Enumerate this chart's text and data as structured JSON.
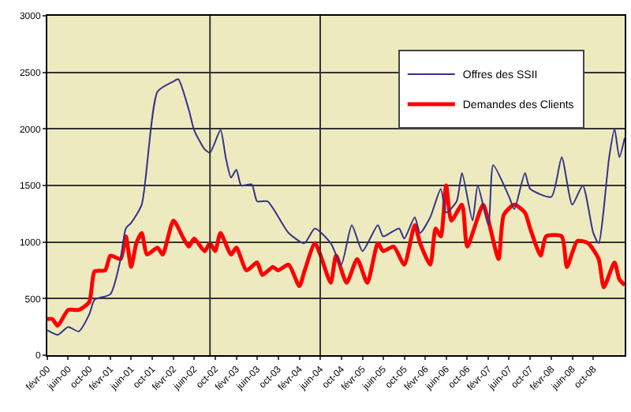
{
  "chart_data": {
    "type": "line",
    "series": [
      {
        "name": "Offres des SSII",
        "color": "#333388",
        "x": [
          "2000-02",
          "2000-04",
          "2000-06",
          "2000-08",
          "2000-10",
          "2000-11",
          "2001-02",
          "2001-04",
          "2001-05",
          "2001-06",
          "2001-08",
          "2001-11",
          "2002-02",
          "2002-03",
          "2002-05",
          "2002-06",
          "2002-08",
          "2002-09",
          "2002-11",
          "2002-12",
          "2003-01",
          "2003-02",
          "2003-03",
          "2003-05",
          "2003-06",
          "2003-08",
          "2003-12",
          "2004-03",
          "2004-05",
          "2004-08",
          "2004-10",
          "2004-12",
          "2005-02",
          "2005-05",
          "2005-06",
          "2005-09",
          "2005-10",
          "2005-12",
          "2006-01",
          "2006-03",
          "2006-05",
          "2006-06",
          "2006-08",
          "2006-09",
          "2006-11",
          "2006-12",
          "2007-02",
          "2007-03",
          "2007-06",
          "2007-07",
          "2007-09",
          "2007-10",
          "2008-02",
          "2008-04",
          "2008-06",
          "2008-08",
          "2008-10",
          "2008-11",
          "2009-01",
          "2009-02",
          "2009-03",
          "2009-04"
        ],
        "values": [
          220,
          180,
          250,
          210,
          360,
          490,
          540,
          850,
          1120,
          1170,
          1330,
          2330,
          2420,
          2440,
          2170,
          1990,
          1820,
          1790,
          1990,
          1750,
          1570,
          1640,
          1500,
          1510,
          1360,
          1360,
          1080,
          990,
          1120,
          990,
          800,
          1150,
          920,
          1150,
          1050,
          1120,
          1030,
          1220,
          1080,
          1220,
          1470,
          1260,
          1360,
          1610,
          1190,
          1500,
          1150,
          1680,
          1400,
          1290,
          1610,
          1470,
          1400,
          1750,
          1330,
          1500,
          1080,
          990,
          1750,
          2000,
          1750,
          1920
        ]
      },
      {
        "name": "Demandes des Clients",
        "color": "#ff0000",
        "x": [
          "2000-02",
          "2000-03",
          "2000-04",
          "2000-06",
          "2000-08",
          "2000-10",
          "2000-11",
          "2001-01",
          "2001-02",
          "2001-04",
          "2001-05",
          "2001-06",
          "2001-07",
          "2001-08",
          "2001-09",
          "2001-11",
          "2001-12",
          "2002-02",
          "2002-04",
          "2002-05",
          "2002-06",
          "2002-08",
          "2002-09",
          "2002-10",
          "2002-11",
          "2003-01",
          "2003-02",
          "2003-04",
          "2003-06",
          "2003-07",
          "2003-09",
          "2003-10",
          "2003-12",
          "2004-02",
          "2004-03",
          "2004-05",
          "2004-06",
          "2004-08",
          "2004-09",
          "2004-11",
          "2005-01",
          "2005-03",
          "2005-05",
          "2005-06",
          "2005-08",
          "2005-10",
          "2005-12",
          "2006-01",
          "2006-03",
          "2006-04",
          "2006-05",
          "2006-06",
          "2006-07",
          "2006-09",
          "2006-10",
          "2007-01",
          "2007-02",
          "2007-04",
          "2007-05",
          "2007-07",
          "2007-09",
          "2007-10",
          "2007-12",
          "2008-01",
          "2008-04",
          "2008-05",
          "2008-07",
          "2008-09",
          "2008-11",
          "2008-12",
          "2009-02",
          "2009-03",
          "2009-04"
        ],
        "values": [
          320,
          320,
          260,
          400,
          400,
          470,
          740,
          750,
          880,
          850,
          1050,
          780,
          990,
          1080,
          890,
          950,
          890,
          1190,
          1030,
          960,
          1030,
          920,
          990,
          920,
          1080,
          890,
          950,
          750,
          820,
          710,
          780,
          750,
          800,
          610,
          740,
          990,
          890,
          640,
          880,
          640,
          850,
          640,
          990,
          920,
          960,
          800,
          1150,
          990,
          800,
          1120,
          1050,
          1500,
          1190,
          1330,
          960,
          1330,
          1190,
          850,
          1240,
          1330,
          1260,
          1120,
          880,
          1050,
          1050,
          780,
          1010,
          990,
          850,
          600,
          820,
          670,
          620
        ]
      }
    ],
    "xlim": [
      "2000-02",
      "2009-04"
    ],
    "xticks": [
      {
        "value": "2000-02",
        "label": "févr-00"
      },
      {
        "value": "2000-06",
        "label": "juin-00"
      },
      {
        "value": "2000-10",
        "label": "oct-00"
      },
      {
        "value": "2001-02",
        "label": "févr-01"
      },
      {
        "value": "2001-06",
        "label": "juin-01"
      },
      {
        "value": "2001-10",
        "label": "oct-01"
      },
      {
        "value": "2002-02",
        "label": "févr-02"
      },
      {
        "value": "2002-06",
        "label": "juin-02"
      },
      {
        "value": "2002-10",
        "label": "oct-02"
      },
      {
        "value": "2003-02",
        "label": "févr-03"
      },
      {
        "value": "2003-06",
        "label": "juin-03"
      },
      {
        "value": "2003-10",
        "label": "oct-03"
      },
      {
        "value": "2004-02",
        "label": "févr-04"
      },
      {
        "value": "2004-06",
        "label": "juin-04"
      },
      {
        "value": "2004-10",
        "label": "oct-04"
      },
      {
        "value": "2005-02",
        "label": "févr-05"
      },
      {
        "value": "2005-06",
        "label": "juin-05"
      },
      {
        "value": "2005-10",
        "label": "oct-05"
      },
      {
        "value": "2006-02",
        "label": "févr-06"
      },
      {
        "value": "2006-06",
        "label": "juin-06"
      },
      {
        "value": "2006-10",
        "label": "oct-06"
      },
      {
        "value": "2007-02",
        "label": "févr-07"
      },
      {
        "value": "2007-06",
        "label": "juin-07"
      },
      {
        "value": "2007-10",
        "label": "oct-07"
      },
      {
        "value": "2008-02",
        "label": "févr-08"
      },
      {
        "value": "2008-06",
        "label": "juin-08"
      },
      {
        "value": "2008-10",
        "label": "oct-08"
      }
    ],
    "ylim": [
      0,
      3000
    ],
    "yticks": [
      0,
      500,
      1000,
      1500,
      2000,
      2500,
      3000
    ],
    "ref_lines": [
      {
        "axis": "x",
        "value": "2002-09",
        "color": "#333333"
      },
      {
        "axis": "x",
        "value": "2004-06",
        "color": "#333333"
      }
    ],
    "grid": "y",
    "legend": "top right",
    "marker": "none",
    "line_style": "solid"
  }
}
